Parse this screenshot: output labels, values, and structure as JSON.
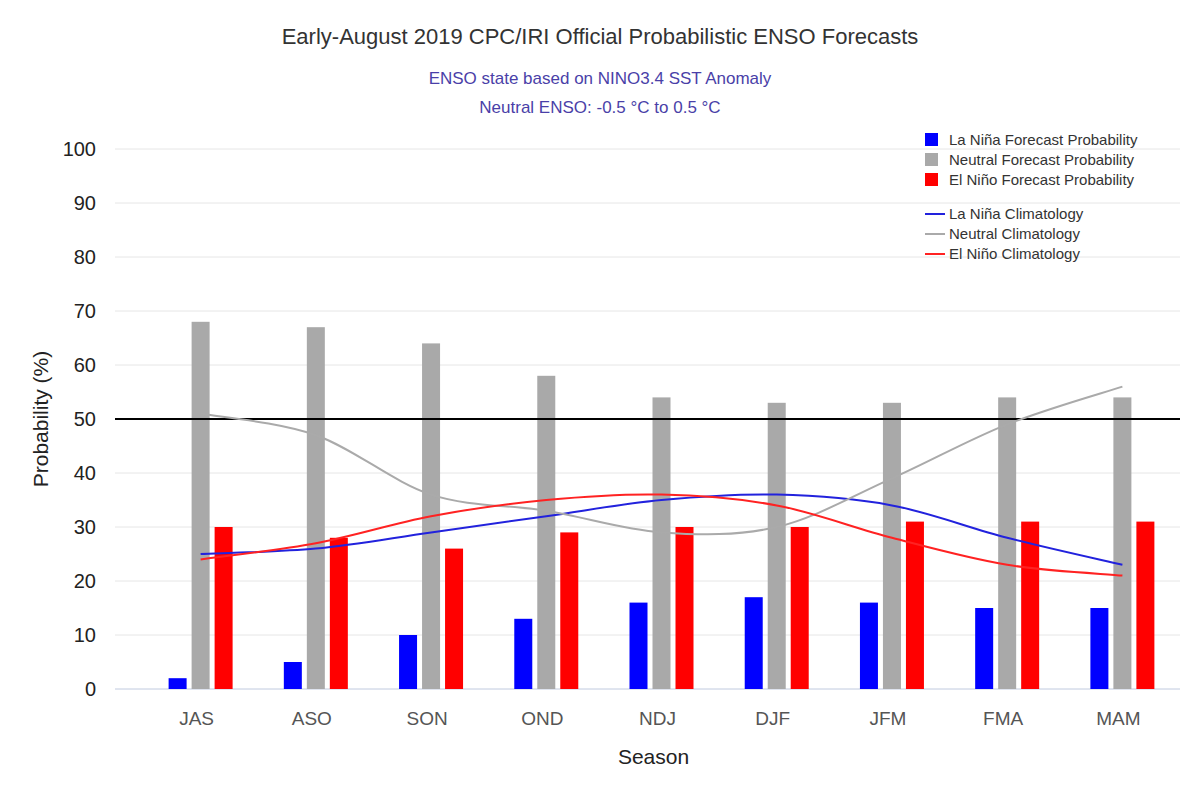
{
  "chart_data": {
    "type": "bar",
    "title": "Early-August 2019 CPC/IRI Official Probabilistic ENSO Forecasts",
    "subtitle": [
      "ENSO state based on NINO3.4 SST Anomaly",
      "Neutral ENSO: -0.5 °C to 0.5 °C"
    ],
    "x_label": "Season",
    "y_label": "Probability (%)",
    "categories": [
      "JAS",
      "ASO",
      "SON",
      "OND",
      "NDJ",
      "DJF",
      "JFM",
      "FMA",
      "MAM"
    ],
    "series": [
      {
        "name": "La Niña Forecast Probability",
        "type": "bar",
        "color": "#0000ff",
        "values": [
          2,
          5,
          10,
          13,
          16,
          17,
          16,
          15,
          15
        ]
      },
      {
        "name": "Neutral Forecast Probability",
        "type": "bar",
        "color": "#a9a9a9",
        "values": [
          68,
          67,
          64,
          58,
          54,
          53,
          53,
          54,
          54
        ]
      },
      {
        "name": "El Niño Forecast Probability",
        "type": "bar",
        "color": "#ff0000",
        "values": [
          30,
          28,
          26,
          29,
          30,
          30,
          31,
          31,
          31
        ]
      },
      {
        "name": "La Niña Climatology",
        "type": "line",
        "color": "#2222dd",
        "line_style": "smooth",
        "values": [
          25,
          26,
          29,
          32,
          35,
          36,
          34,
          28,
          23
        ]
      },
      {
        "name": "Neutral Climatology",
        "type": "line",
        "color": "#aaaaaa",
        "line_style": "smooth",
        "values": [
          51,
          47,
          36,
          33,
          29,
          30,
          39,
          49,
          56
        ]
      },
      {
        "name": "El Niño Climatology",
        "type": "line",
        "color": "#ff2222",
        "line_style": "smooth",
        "values": [
          24,
          27,
          32,
          35,
          36,
          34,
          28,
          23,
          21
        ]
      }
    ],
    "reference_line": 50,
    "ylim": [
      0,
      100
    ],
    "yticks": [
      0,
      10,
      20,
      30,
      40,
      50,
      60,
      70,
      80,
      90,
      100
    ],
    "grid": true,
    "legend": "top-right"
  }
}
